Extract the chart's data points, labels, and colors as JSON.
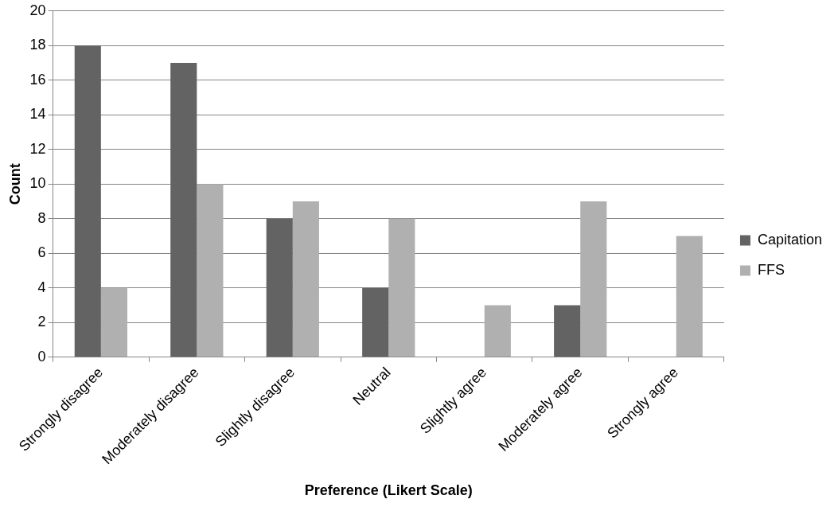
{
  "chart_data": {
    "type": "bar",
    "xlabel": "Preference (Likert Scale)",
    "ylabel": "Count",
    "categories": [
      "Strongly disagree",
      "Moderately disagree",
      "Slightly disagree",
      "Neutral",
      "Slightly agree",
      "Moderately agree",
      "Strongly agree"
    ],
    "series": [
      {
        "name": "Capitation",
        "color": "#636363",
        "values": [
          18,
          17,
          8,
          4,
          0,
          3,
          0
        ]
      },
      {
        "name": "FFS",
        "color": "#b0b0b0",
        "values": [
          4,
          10,
          9,
          8,
          3,
          9,
          7
        ]
      }
    ],
    "ylim": [
      0,
      20
    ],
    "yticks": [
      0,
      2,
      4,
      6,
      8,
      10,
      12,
      14,
      16,
      18,
      20
    ],
    "grid": "y",
    "legend": "right"
  }
}
